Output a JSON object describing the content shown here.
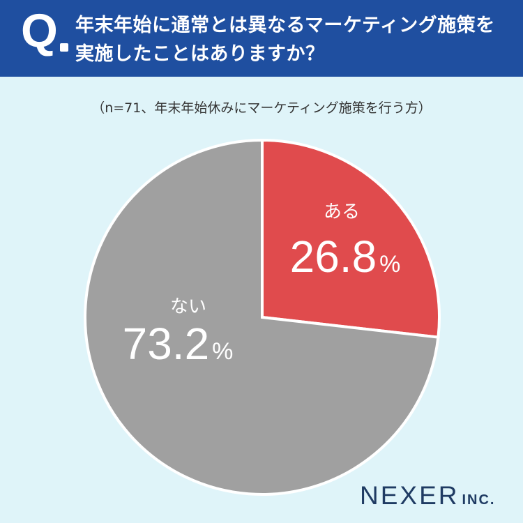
{
  "header": {
    "q_mark": "Q",
    "question": "年末年始に通常とは異なるマーケティング施策を実施したことはありますか？"
  },
  "note": "（n=71、年末年始休みにマーケティング施策を行う方）",
  "chart_data": {
    "type": "pie",
    "slices": [
      {
        "label": "ある",
        "value": 26.8,
        "value_text": "26.8",
        "unit": "%",
        "color": "#e04b4d"
      },
      {
        "label": "ない",
        "value": 73.2,
        "value_text": "73.2",
        "unit": "%",
        "color": "#a0a0a0"
      }
    ],
    "start_angle": "12 o'clock",
    "direction": "clockwise",
    "legend": "none (labels inside slices)"
  },
  "brand": {
    "main": "NEXER",
    "sub": "INC."
  }
}
